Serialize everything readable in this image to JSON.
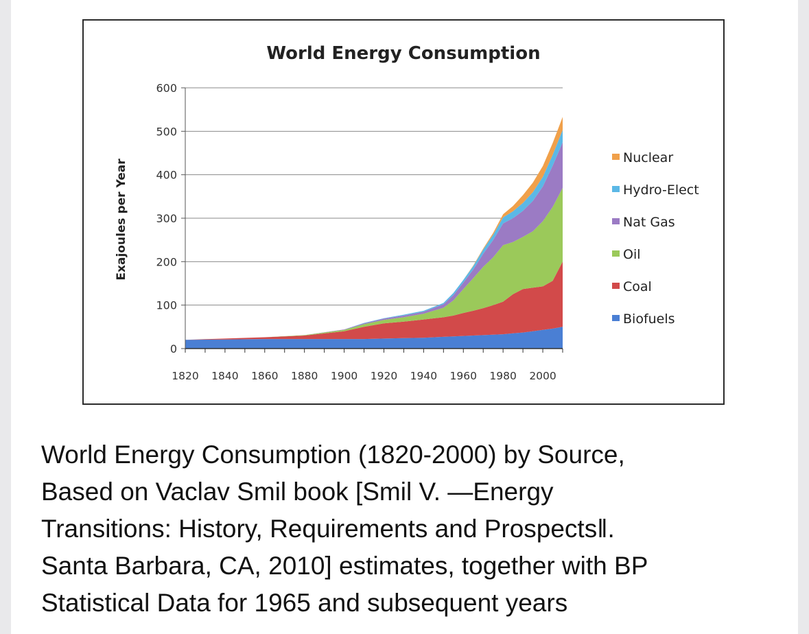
{
  "chart_data": {
    "type": "area",
    "stacked": true,
    "title": "World Energy Consumption",
    "xlabel": "",
    "ylabel": "Exajoules per Year",
    "xlim": [
      1820,
      2010
    ],
    "ylim": [
      0,
      600
    ],
    "x_ticks": [
      "1820",
      "1840",
      "1860",
      "1880",
      "1900",
      "1920",
      "1940",
      "1960",
      "1980",
      "2000"
    ],
    "y_ticks": [
      "0",
      "100",
      "200",
      "300",
      "400",
      "500",
      "600"
    ],
    "grid": "horizontal",
    "legend_position": "right",
    "x": [
      1820,
      1840,
      1860,
      1880,
      1900,
      1910,
      1920,
      1930,
      1940,
      1950,
      1955,
      1960,
      1965,
      1970,
      1975,
      1980,
      1985,
      1990,
      1995,
      2000,
      2005,
      2010
    ],
    "series": [
      {
        "name": "Biofuels",
        "color": "#4a7fd4",
        "values": [
          20,
          21,
          22,
          22,
          22,
          22,
          23,
          24,
          25,
          27,
          28,
          29,
          30,
          31,
          32,
          33,
          35,
          37,
          40,
          43,
          46,
          50
        ]
      },
      {
        "name": "Coal",
        "color": "#d24a4a",
        "values": [
          0,
          2,
          4,
          8,
          18,
          28,
          35,
          38,
          42,
          45,
          48,
          53,
          57,
          62,
          68,
          75,
          90,
          100,
          100,
          100,
          110,
          150
        ]
      },
      {
        "name": "Oil",
        "color": "#9bc95a",
        "values": [
          0,
          0,
          0,
          1,
          3,
          6,
          8,
          10,
          13,
          22,
          35,
          55,
          75,
          95,
          110,
          130,
          120,
          120,
          130,
          150,
          170,
          170
        ]
      },
      {
        "name": "Nat Gas",
        "color": "#9b7bc4",
        "values": [
          0,
          0,
          0,
          0,
          1,
          2,
          3,
          4,
          5,
          8,
          12,
          15,
          20,
          30,
          40,
          50,
          55,
          60,
          70,
          80,
          95,
          105
        ]
      },
      {
        "name": "Hydro-Elect",
        "color": "#5bb8e6",
        "values": [
          0,
          0,
          0,
          0,
          0,
          1,
          1,
          2,
          2,
          3,
          5,
          6,
          8,
          10,
          12,
          14,
          16,
          18,
          20,
          22,
          25,
          28
        ]
      },
      {
        "name": "Nuclear",
        "color": "#f0a04a",
        "values": [
          0,
          0,
          0,
          0,
          0,
          0,
          0,
          0,
          0,
          0,
          0,
          0,
          1,
          2,
          4,
          7,
          12,
          18,
          22,
          25,
          27,
          30
        ]
      }
    ]
  },
  "caption": {
    "lines": [
      "World Energy Consumption (1820-2000) by Source,",
      "Based on Vaclav Smil book [Smil V. —Energy",
      "Transitions: History, Requirements and Prospects‖.",
      "Santa Barbara, CA, 2010] estimates, together with BP",
      "Statistical Data for 1965 and subsequent years"
    ]
  }
}
